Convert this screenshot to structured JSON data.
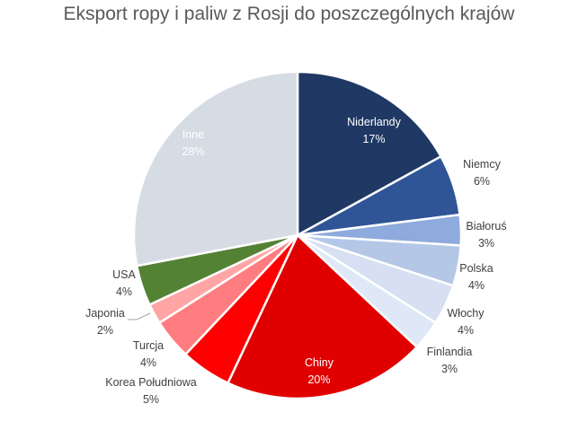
{
  "chart_data": {
    "type": "pie",
    "title": "Eksport ropy i paliw z Rosji do poszczególnych krajów",
    "slices": [
      {
        "label": "Niderlandy",
        "value": 17,
        "percent": "17%",
        "color": "#1f3864",
        "label_color": "#ffffff"
      },
      {
        "label": "Niemcy",
        "value": 6,
        "percent": "6%",
        "color": "#2f5597",
        "label_color": "#404040"
      },
      {
        "label": "Białoruś",
        "value": 3,
        "percent": "3%",
        "color": "#8faadc",
        "label_color": "#404040"
      },
      {
        "label": "Polska",
        "value": 4,
        "percent": "4%",
        "color": "#b4c7e7",
        "label_color": "#404040"
      },
      {
        "label": "Włochy",
        "value": 4,
        "percent": "4%",
        "color": "#d6e0f2",
        "label_color": "#404040"
      },
      {
        "label": "Finlandia",
        "value": 3,
        "percent": "3%",
        "color": "#dfe8f6",
        "label_color": "#404040"
      },
      {
        "label": "Chiny",
        "value": 20,
        "percent": "20%",
        "color": "#e00000",
        "label_color": "#ffffff"
      },
      {
        "label": "Korea Południowa",
        "value": 5,
        "percent": "5%",
        "color": "#ff0000",
        "label_color": "#404040"
      },
      {
        "label": "Turcja",
        "value": 4,
        "percent": "4%",
        "color": "#ff7c80",
        "label_color": "#404040"
      },
      {
        "label": "Japonia",
        "value": 2,
        "percent": "2%",
        "color": "#ffa5a5",
        "label_color": "#404040"
      },
      {
        "label": "USA",
        "value": 4,
        "percent": "4%",
        "color": "#548235",
        "label_color": "#404040"
      },
      {
        "label": "Inne",
        "value": 28,
        "percent": "28%",
        "color": "#d6dce4",
        "label_color": "#ffffff"
      }
    ]
  }
}
